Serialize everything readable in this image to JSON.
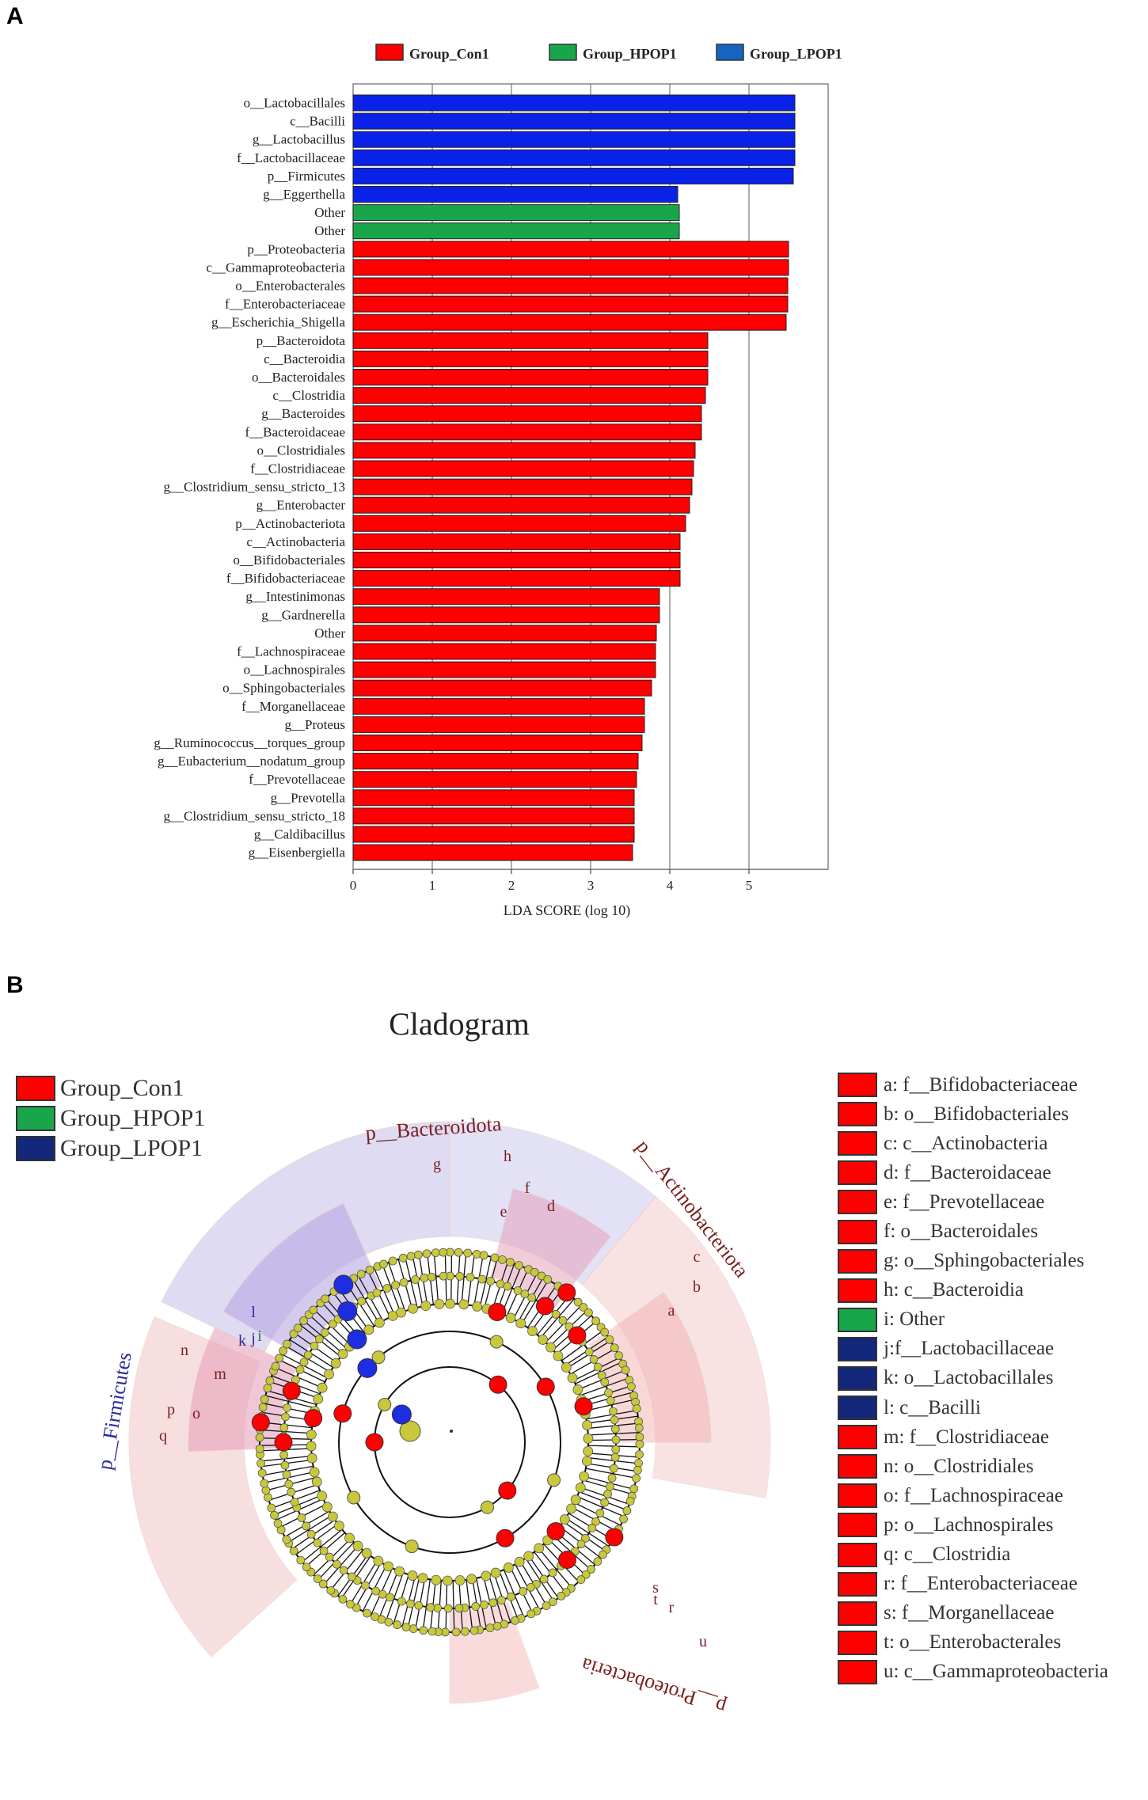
{
  "panels": {
    "a": "A",
    "b": "B"
  },
  "colors": {
    "con": "#ff0000",
    "hpop": "#19a64b",
    "lpop": "#0a22e8",
    "lpop_legend": "#1565c0",
    "node": "#c8c83a",
    "lpop_clad": "#13287a"
  },
  "chart_data": [
    {
      "type": "bar",
      "orientation": "horizontal",
      "xlabel": "LDA SCORE (log 10)",
      "xlim": [
        0,
        6
      ],
      "xticks": [
        0,
        1,
        2,
        3,
        4,
        5
      ],
      "grid": "vertical",
      "legend_position": "top",
      "legend": [
        {
          "name": "Group_Con1",
          "color": "#ff0000"
        },
        {
          "name": "Group_HPOP1",
          "color": "#19a64b"
        },
        {
          "name": "Group_LPOP1",
          "color": "#1565c0"
        }
      ],
      "categories": [
        "o__Lactobacillales",
        "c__Bacilli",
        "g__Lactobacillus",
        "f__Lactobacillaceae",
        "p__Firmicutes",
        "g__Eggerthella",
        "Other",
        "Other",
        "p__Proteobacteria",
        "c__Gammaproteobacteria",
        "o__Enterobacterales",
        "f__Enterobacteriaceae",
        "g__Escherichia_Shigella",
        "p__Bacteroidota",
        "c__Bacteroidia",
        "o__Bacteroidales",
        "c__Clostridia",
        "g__Bacteroides",
        "f__Bacteroidaceae",
        "o__Clostridiales",
        "f__Clostridiaceae",
        "g__Clostridium_sensu_stricto_13",
        "g__Enterobacter",
        "p__Actinobacteriota",
        "c__Actinobacteria",
        "o__Bifidobacteriales",
        "f__Bifidobacteriaceae",
        "g__Intestinimonas",
        "g__Gardnerella",
        "Other",
        "f__Lachnospiraceae",
        "o__Lachnospirales",
        "o__Sphingobacteriales",
        "f__Morganellaceae",
        "g__Proteus",
        "g__Ruminococcus__torques_group",
        "g__Eubacterium__nodatum_group",
        "f__Prevotellaceae",
        "g__Prevotella",
        "g__Clostridium_sensu_stricto_18",
        "g__Caldibacillus",
        "g__Eisenbergiella"
      ],
      "values": [
        5.58,
        5.58,
        5.58,
        5.58,
        5.56,
        4.1,
        4.12,
        4.12,
        5.5,
        5.5,
        5.49,
        5.49,
        5.47,
        4.48,
        4.48,
        4.48,
        4.45,
        4.4,
        4.4,
        4.32,
        4.3,
        4.28,
        4.25,
        4.2,
        4.13,
        4.13,
        4.13,
        3.87,
        3.87,
        3.83,
        3.82,
        3.82,
        3.77,
        3.68,
        3.68,
        3.65,
        3.6,
        3.58,
        3.55,
        3.55,
        3.55,
        3.53
      ],
      "groups": [
        "Group_LPOP1",
        "Group_LPOP1",
        "Group_LPOP1",
        "Group_LPOP1",
        "Group_LPOP1",
        "Group_LPOP1",
        "Group_HPOP1",
        "Group_HPOP1",
        "Group_Con1",
        "Group_Con1",
        "Group_Con1",
        "Group_Con1",
        "Group_Con1",
        "Group_Con1",
        "Group_Con1",
        "Group_Con1",
        "Group_Con1",
        "Group_Con1",
        "Group_Con1",
        "Group_Con1",
        "Group_Con1",
        "Group_Con1",
        "Group_Con1",
        "Group_Con1",
        "Group_Con1",
        "Group_Con1",
        "Group_Con1",
        "Group_Con1",
        "Group_Con1",
        "Group_Con1",
        "Group_Con1",
        "Group_Con1",
        "Group_Con1",
        "Group_Con1",
        "Group_Con1",
        "Group_Con1",
        "Group_Con1",
        "Group_Con1",
        "Group_Con1",
        "Group_Con1",
        "Group_Con1",
        "Group_Con1"
      ]
    },
    {
      "type": "cladogram",
      "title": "Cladogram",
      "legend": [
        {
          "name": "Group_Con1",
          "color": "#ff0000"
        },
        {
          "name": "Group_HPOP1",
          "color": "#19a64b"
        },
        {
          "name": "Group_LPOP1",
          "color": "#13287a"
        }
      ],
      "clade_labels": [
        {
          "label": "p__Bacteroidota",
          "group": "Group_Con1"
        },
        {
          "label": "p__Actinobacteriota",
          "group": "Group_Con1"
        },
        {
          "label": "p__Proteobacteria",
          "group": "Group_Con1"
        },
        {
          "label": "p__Firmicutes",
          "group": "Group_LPOP1"
        }
      ],
      "letter_markers": [
        {
          "label": "g",
          "group": "Group_Con1"
        },
        {
          "label": "h",
          "group": "Group_Con1"
        },
        {
          "label": "f",
          "group": "Group_Con1"
        },
        {
          "label": "e",
          "group": "Group_Con1"
        },
        {
          "label": "d",
          "group": "Group_Con1"
        },
        {
          "label": "c",
          "group": "Group_Con1"
        },
        {
          "label": "b",
          "group": "Group_Con1"
        },
        {
          "label": "a",
          "group": "Group_Con1"
        },
        {
          "label": "l",
          "group": "Group_LPOP1"
        },
        {
          "label": "k",
          "group": "Group_LPOP1"
        },
        {
          "label": "j",
          "group": "Group_LPOP1"
        },
        {
          "label": "i",
          "group": "Group_HPOP1"
        },
        {
          "label": "n",
          "group": "Group_Con1"
        },
        {
          "label": "m",
          "group": "Group_Con1"
        },
        {
          "label": "p",
          "group": "Group_Con1"
        },
        {
          "label": "o",
          "group": "Group_Con1"
        },
        {
          "label": "q",
          "group": "Group_Con1"
        },
        {
          "label": "s",
          "group": "Group_Con1"
        },
        {
          "label": "t",
          "group": "Group_Con1"
        },
        {
          "label": "r",
          "group": "Group_Con1"
        },
        {
          "label": "u",
          "group": "Group_Con1"
        }
      ],
      "code_legend": [
        {
          "text": "a: f__Bifidobacteriaceae",
          "group": "Group_Con1"
        },
        {
          "text": "b: o__Bifidobacteriales",
          "group": "Group_Con1"
        },
        {
          "text": "c: c__Actinobacteria",
          "group": "Group_Con1"
        },
        {
          "text": "d: f__Bacteroidaceae",
          "group": "Group_Con1"
        },
        {
          "text": "e: f__Prevotellaceae",
          "group": "Group_Con1"
        },
        {
          "text": "f: o__Bacteroidales",
          "group": "Group_Con1"
        },
        {
          "text": "g: o__Sphingobacteriales",
          "group": "Group_Con1"
        },
        {
          "text": "h: c__Bacteroidia",
          "group": "Group_Con1"
        },
        {
          "text": "i: Other",
          "group": "Group_HPOP1"
        },
        {
          "text": "j:f__Lactobacillaceae",
          "group": "Group_LPOP1"
        },
        {
          "text": "k: o__Lactobacillales",
          "group": "Group_LPOP1"
        },
        {
          "text": "l: c__Bacilli",
          "group": "Group_LPOP1"
        },
        {
          "text": "m: f__Clostridiaceae",
          "group": "Group_Con1"
        },
        {
          "text": "n: o__Clostridiales",
          "group": "Group_Con1"
        },
        {
          "text": "o: f__Lachnospiraceae",
          "group": "Group_Con1"
        },
        {
          "text": "p: o__Lachnospirales",
          "group": "Group_Con1"
        },
        {
          "text": "q: c__Clostridia",
          "group": "Group_Con1"
        },
        {
          "text": "r: f__Enterobacteriaceae",
          "group": "Group_Con1"
        },
        {
          "text": "s: f__Morganellaceae",
          "group": "Group_Con1"
        },
        {
          "text": "t: o__Enterobacterales",
          "group": "Group_Con1"
        },
        {
          "text": "u: c__Gammaproteobacteria",
          "group": "Group_Con1"
        }
      ]
    }
  ]
}
